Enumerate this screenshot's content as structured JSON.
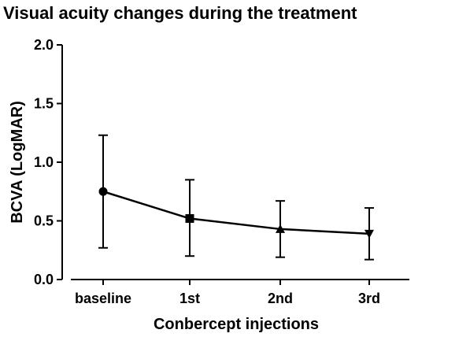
{
  "chart_data": {
    "type": "line",
    "title": "Visual acuity changes during the treatment",
    "xlabel": "Conbercept injections",
    "ylabel": "BCVA (LogMAR)",
    "categories": [
      "baseline",
      "1st",
      "2nd",
      "3rd"
    ],
    "ylim": [
      0,
      2.0
    ],
    "yticks": [
      "0.0",
      "0.5",
      "1.0",
      "1.5",
      "2.0"
    ],
    "grid": false,
    "series": [
      {
        "values": [
          0.75,
          0.52,
          0.43,
          0.39
        ],
        "error_upper": [
          1.23,
          0.85,
          0.67,
          0.61
        ],
        "error_lower": [
          0.27,
          0.2,
          0.19,
          0.17
        ],
        "markers": [
          "circle",
          "square",
          "triangle-up",
          "triangle-down"
        ],
        "color": "#000000"
      }
    ]
  }
}
